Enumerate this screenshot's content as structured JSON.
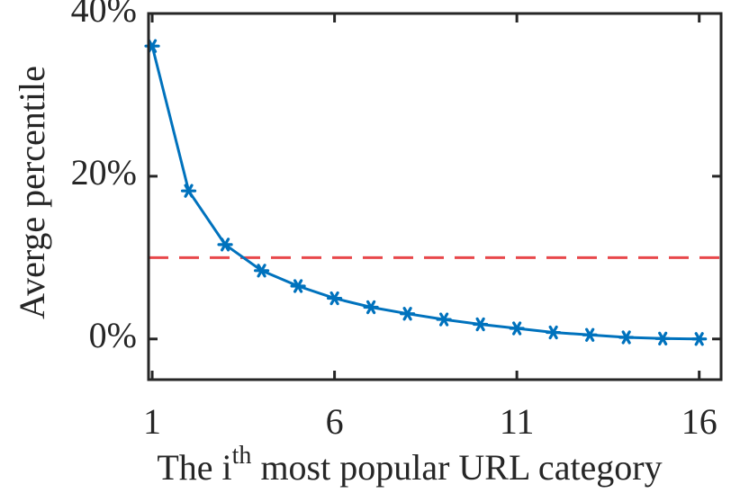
{
  "chart_data": {
    "type": "line",
    "title": "",
    "xlabel": {
      "prefix": "The i",
      "superscript": "th",
      "suffix": " most popular URL category"
    },
    "ylabel": "Averge percentile",
    "xlim": [
      0.9,
      16.6
    ],
    "ylim": [
      -5,
      40
    ],
    "x_ticks": [
      1,
      6,
      11,
      16
    ],
    "x_tick_labels": [
      "1",
      "6",
      "11",
      "16"
    ],
    "y_ticks": [
      0,
      20,
      40
    ],
    "y_tick_labels": [
      "0%",
      "20%",
      "40%"
    ],
    "grid": false,
    "series": [
      {
        "color": "#0072BD",
        "marker": "asterisk",
        "x": [
          1,
          2,
          3,
          4,
          5,
          6,
          7,
          8,
          9,
          10,
          11,
          12,
          13,
          14,
          15,
          16
        ],
        "y": [
          36,
          18.2,
          11.6,
          8.4,
          6.5,
          5.0,
          3.9,
          3.1,
          2.4,
          1.8,
          1.3,
          0.8,
          0.5,
          0.2,
          0.05,
          0
        ]
      }
    ],
    "reference_line": {
      "y": 10,
      "color": "#E8484B",
      "style": "dashed"
    }
  }
}
